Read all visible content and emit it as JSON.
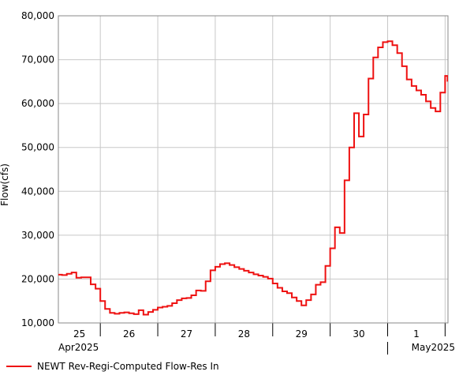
{
  "chart_data": {
    "type": "line",
    "step": true,
    "y_label": "Flow(cfs)",
    "day_labels": [
      "25",
      "26",
      "27",
      "28",
      "29",
      "30",
      "1"
    ],
    "month_labels": [
      "Apr2025",
      "May2025"
    ],
    "xlim": [
      0.27,
      7.05
    ],
    "xticks": [
      1,
      2,
      3,
      4,
      5,
      6,
      7
    ],
    "ylim": [
      10000,
      80000
    ],
    "yticks": [
      {
        "value": 10000,
        "label": "10,000"
      },
      {
        "value": 20000,
        "label": "20,000"
      },
      {
        "value": 30000,
        "label": "30,000"
      },
      {
        "value": 40000,
        "label": "40,000"
      },
      {
        "value": 50000,
        "label": "50,000"
      },
      {
        "value": 60000,
        "label": "60,000"
      },
      {
        "value": 70000,
        "label": "70,000"
      },
      {
        "value": 80000,
        "label": "80,000"
      }
    ],
    "grid": true,
    "legend": "bottom",
    "x": [
      0.25,
      0.333,
      0.417,
      0.5,
      0.583,
      0.667,
      0.75,
      0.833,
      0.917,
      1.0,
      1.083,
      1.167,
      1.25,
      1.333,
      1.417,
      1.5,
      1.583,
      1.667,
      1.75,
      1.833,
      1.917,
      2.0,
      2.083,
      2.167,
      2.25,
      2.333,
      2.417,
      2.5,
      2.583,
      2.667,
      2.75,
      2.833,
      2.917,
      3.0,
      3.083,
      3.167,
      3.25,
      3.333,
      3.417,
      3.5,
      3.583,
      3.667,
      3.75,
      3.833,
      3.917,
      4.0,
      4.083,
      4.167,
      4.25,
      4.333,
      4.417,
      4.5,
      4.583,
      4.667,
      4.75,
      4.833,
      4.917,
      5.0,
      5.083,
      5.167,
      5.25,
      5.333,
      5.417,
      5.5,
      5.583,
      5.667,
      5.75,
      5.833,
      5.917,
      6.0,
      6.083,
      6.167,
      6.25,
      6.333,
      6.417,
      6.5,
      6.583,
      6.667,
      6.75,
      6.833,
      6.917,
      7.0,
      7.042
    ],
    "series": [
      {
        "name": "NEWT Rev-Regi-Computed Flow-Res In",
        "color": "#ee1111",
        "values": [
          21000,
          20900,
          21200,
          21500,
          20300,
          20400,
          20400,
          18800,
          17800,
          15000,
          13200,
          12300,
          12100,
          12300,
          12400,
          12200,
          12000,
          12900,
          11900,
          12500,
          13000,
          13500,
          13700,
          13900,
          14500,
          15200,
          15600,
          15700,
          16300,
          17400,
          17300,
          19500,
          22000,
          22800,
          23400,
          23600,
          23200,
          22700,
          22300,
          21900,
          21500,
          21100,
          20800,
          20500,
          20100,
          19000,
          18000,
          17200,
          16800,
          15800,
          15000,
          14000,
          15200,
          16500,
          18700,
          19300,
          23000,
          27000,
          31800,
          30500,
          42500,
          50000,
          57800,
          52500,
          57500,
          65700,
          70500,
          72800,
          74000,
          74200,
          73300,
          71500,
          68500,
          65500,
          64000,
          63000,
          62000,
          60500,
          59000,
          58200,
          62500,
          66300,
          65000
        ]
      }
    ]
  }
}
